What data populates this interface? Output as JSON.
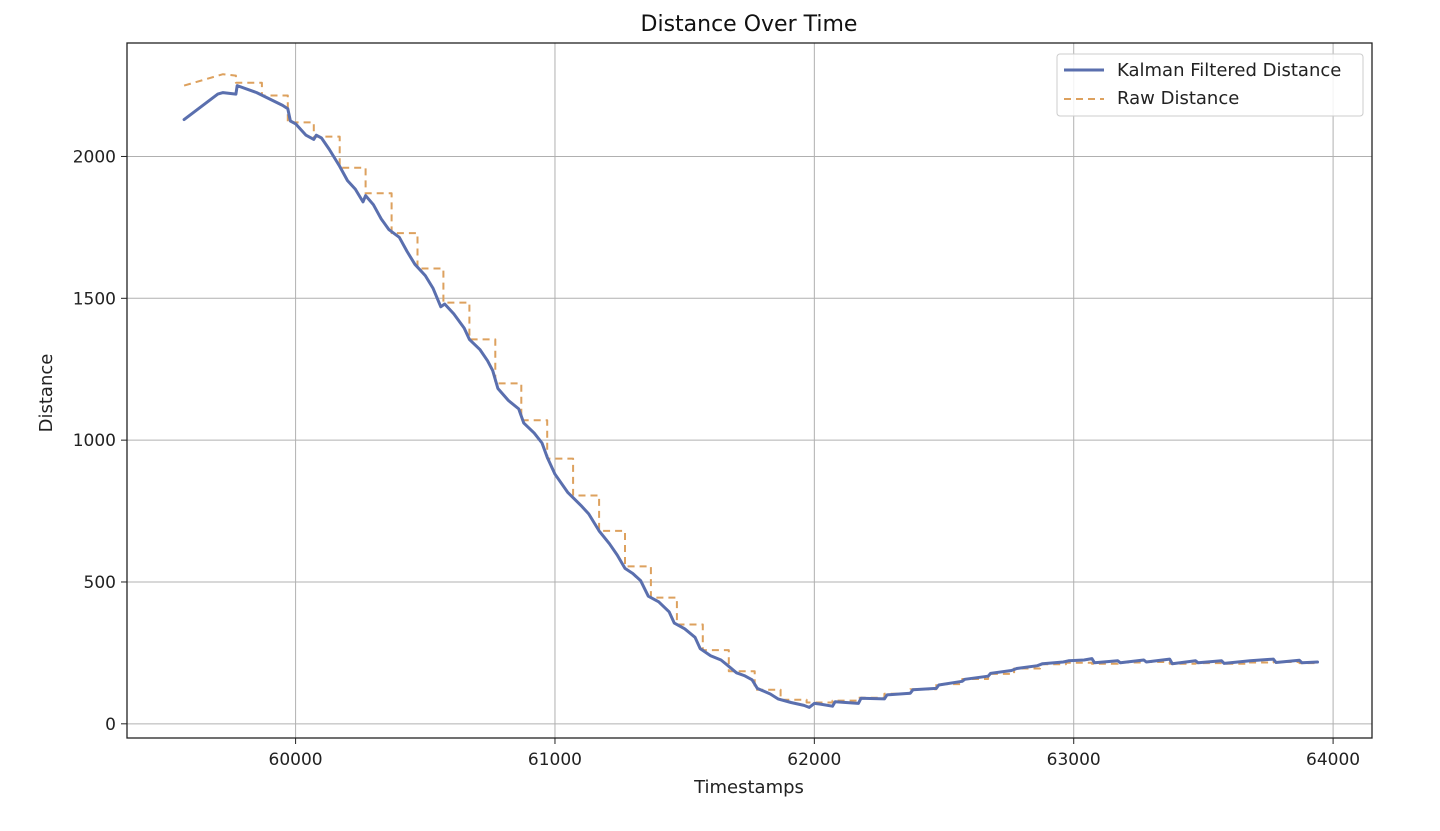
{
  "chart_data": {
    "type": "line",
    "title": "Distance Over Time",
    "xlabel": "Timestamps",
    "ylabel": "Distance",
    "xlim": [
      59350,
      64150
    ],
    "ylim": [
      -50,
      2400
    ],
    "xticks": [
      60000,
      61000,
      62000,
      63000,
      64000
    ],
    "yticks": [
      0,
      500,
      1000,
      1500,
      2000
    ],
    "grid": true,
    "legend_position": "top-right",
    "series": [
      {
        "name": "Kalman Filtered Distance",
        "color": "#5a6fae",
        "style": "solid",
        "points": [
          [
            59570,
            2130
          ],
          [
            59700,
            2220
          ],
          [
            59720,
            2225
          ],
          [
            59770,
            2220
          ],
          [
            59775,
            2250
          ],
          [
            59850,
            2225
          ],
          [
            59950,
            2180
          ],
          [
            59970,
            2168
          ],
          [
            59980,
            2125
          ],
          [
            60000,
            2115
          ],
          [
            60040,
            2075
          ],
          [
            60070,
            2060
          ],
          [
            60080,
            2075
          ],
          [
            60100,
            2065
          ],
          [
            60130,
            2025
          ],
          [
            60170,
            1965
          ],
          [
            60200,
            1915
          ],
          [
            60230,
            1885
          ],
          [
            60260,
            1840
          ],
          [
            60270,
            1862
          ],
          [
            60300,
            1830
          ],
          [
            60330,
            1780
          ],
          [
            60360,
            1742
          ],
          [
            60400,
            1715
          ],
          [
            60430,
            1665
          ],
          [
            60460,
            1620
          ],
          [
            60500,
            1580
          ],
          [
            60530,
            1535
          ],
          [
            60560,
            1470
          ],
          [
            60575,
            1480
          ],
          [
            60610,
            1445
          ],
          [
            60650,
            1395
          ],
          [
            60670,
            1355
          ],
          [
            60710,
            1320
          ],
          [
            60740,
            1280
          ],
          [
            60760,
            1245
          ],
          [
            60780,
            1182
          ],
          [
            60820,
            1140
          ],
          [
            60860,
            1110
          ],
          [
            60880,
            1060
          ],
          [
            60920,
            1025
          ],
          [
            60950,
            990
          ],
          [
            60970,
            940
          ],
          [
            61000,
            880
          ],
          [
            61050,
            815
          ],
          [
            61100,
            770
          ],
          [
            61130,
            740
          ],
          [
            61170,
            680
          ],
          [
            61210,
            635
          ],
          [
            61240,
            595
          ],
          [
            61270,
            548
          ],
          [
            61300,
            530
          ],
          [
            61330,
            505
          ],
          [
            61360,
            450
          ],
          [
            61400,
            430
          ],
          [
            61440,
            395
          ],
          [
            61460,
            355
          ],
          [
            61500,
            335
          ],
          [
            61540,
            305
          ],
          [
            61560,
            265
          ],
          [
            61600,
            240
          ],
          [
            61640,
            225
          ],
          [
            61660,
            210
          ],
          [
            61700,
            180
          ],
          [
            61730,
            170
          ],
          [
            61760,
            155
          ],
          [
            61780,
            125
          ],
          [
            61830,
            105
          ],
          [
            61860,
            88
          ],
          [
            61910,
            75
          ],
          [
            61960,
            65
          ],
          [
            61980,
            58
          ],
          [
            62000,
            72
          ],
          [
            62020,
            70
          ],
          [
            62070,
            62
          ],
          [
            62080,
            78
          ],
          [
            62170,
            72
          ],
          [
            62180,
            90
          ],
          [
            62270,
            88
          ],
          [
            62280,
            102
          ],
          [
            62370,
            108
          ],
          [
            62380,
            120
          ],
          [
            62470,
            125
          ],
          [
            62480,
            137
          ],
          [
            62570,
            150
          ],
          [
            62580,
            157
          ],
          [
            62670,
            168
          ],
          [
            62680,
            178
          ],
          [
            62760,
            188
          ],
          [
            62780,
            195
          ],
          [
            62860,
            205
          ],
          [
            62880,
            212
          ],
          [
            62960,
            218
          ],
          [
            62980,
            222
          ],
          [
            63040,
            225
          ],
          [
            63070,
            230
          ],
          [
            63080,
            215
          ],
          [
            63170,
            222
          ],
          [
            63180,
            215
          ],
          [
            63270,
            225
          ],
          [
            63280,
            218
          ],
          [
            63370,
            228
          ],
          [
            63380,
            212
          ],
          [
            63470,
            222
          ],
          [
            63480,
            215
          ],
          [
            63570,
            222
          ],
          [
            63580,
            213
          ],
          [
            63680,
            222
          ],
          [
            63770,
            228
          ],
          [
            63780,
            216
          ],
          [
            63870,
            224
          ],
          [
            63880,
            215
          ],
          [
            63940,
            218
          ]
        ]
      },
      {
        "name": "Raw Distance",
        "color": "#dda15e",
        "style": "dashed",
        "points": [
          [
            59570,
            2250
          ],
          [
            59720,
            2290
          ],
          [
            59770,
            2285
          ],
          [
            59770,
            2260
          ],
          [
            59870,
            2260
          ],
          [
            59870,
            2215
          ],
          [
            59970,
            2215
          ],
          [
            59970,
            2120
          ],
          [
            60070,
            2120
          ],
          [
            60070,
            2070
          ],
          [
            60170,
            2070
          ],
          [
            60170,
            1960
          ],
          [
            60270,
            1960
          ],
          [
            60270,
            1870
          ],
          [
            60370,
            1870
          ],
          [
            60370,
            1730
          ],
          [
            60470,
            1730
          ],
          [
            60470,
            1605
          ],
          [
            60570,
            1605
          ],
          [
            60570,
            1485
          ],
          [
            60670,
            1485
          ],
          [
            60670,
            1355
          ],
          [
            60770,
            1355
          ],
          [
            60770,
            1200
          ],
          [
            60870,
            1200
          ],
          [
            60870,
            1070
          ],
          [
            60970,
            1070
          ],
          [
            60970,
            935
          ],
          [
            61070,
            935
          ],
          [
            61070,
            805
          ],
          [
            61170,
            805
          ],
          [
            61170,
            680
          ],
          [
            61270,
            680
          ],
          [
            61270,
            555
          ],
          [
            61370,
            555
          ],
          [
            61370,
            445
          ],
          [
            61470,
            445
          ],
          [
            61470,
            350
          ],
          [
            61570,
            350
          ],
          [
            61570,
            260
          ],
          [
            61670,
            260
          ],
          [
            61670,
            185
          ],
          [
            61770,
            185
          ],
          [
            61770,
            120
          ],
          [
            61870,
            120
          ],
          [
            61870,
            85
          ],
          [
            61970,
            85
          ],
          [
            61970,
            75
          ],
          [
            62070,
            75
          ],
          [
            62070,
            82
          ],
          [
            62170,
            82
          ],
          [
            62170,
            92
          ],
          [
            62270,
            92
          ],
          [
            62270,
            106
          ],
          [
            62370,
            106
          ],
          [
            62370,
            122
          ],
          [
            62470,
            122
          ],
          [
            62470,
            140
          ],
          [
            62570,
            140
          ],
          [
            62570,
            158
          ],
          [
            62670,
            158
          ],
          [
            62670,
            176
          ],
          [
            62770,
            176
          ],
          [
            62770,
            195
          ],
          [
            62870,
            195
          ],
          [
            62870,
            210
          ],
          [
            62970,
            210
          ],
          [
            62970,
            215
          ],
          [
            63070,
            215
          ],
          [
            63070,
            212
          ],
          [
            63170,
            212
          ],
          [
            63170,
            216
          ],
          [
            63270,
            216
          ],
          [
            63270,
            218
          ],
          [
            63370,
            218
          ],
          [
            63370,
            212
          ],
          [
            63470,
            212
          ],
          [
            63470,
            214
          ],
          [
            63570,
            214
          ],
          [
            63570,
            212
          ],
          [
            63670,
            212
          ],
          [
            63670,
            216
          ],
          [
            63770,
            216
          ],
          [
            63770,
            218
          ],
          [
            63870,
            218
          ],
          [
            63870,
            214
          ],
          [
            63940,
            214
          ]
        ]
      }
    ]
  }
}
